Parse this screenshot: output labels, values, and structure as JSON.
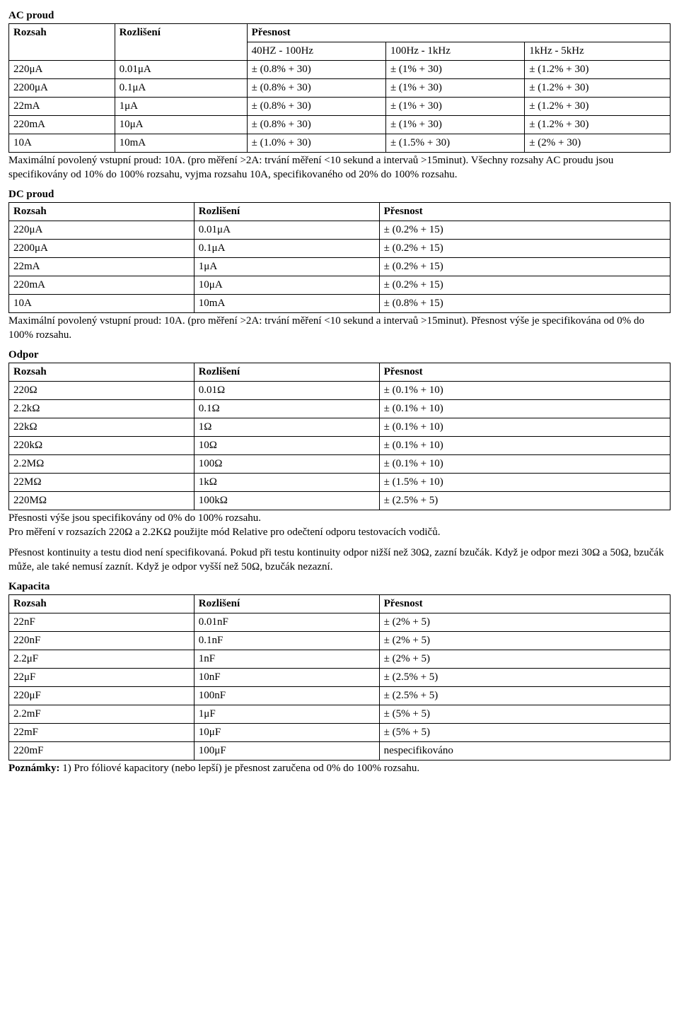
{
  "ac": {
    "title": "AC proud",
    "headers": {
      "range": "Rozsah",
      "resolution": "Rozlišení",
      "accuracy": "Přesnost",
      "b1": "40HZ - 100Hz",
      "b2": "100Hz - 1kHz",
      "b3": "1kHz - 5kHz"
    },
    "rows": [
      {
        "range": "220μA",
        "res": "0.01μA",
        "a1": "± (0.8% + 30)",
        "a2": "± (1% + 30)",
        "a3": "± (1.2% + 30)"
      },
      {
        "range": "2200μA",
        "res": "0.1μA",
        "a1": "± (0.8% + 30)",
        "a2": "± (1% + 30)",
        "a3": "± (1.2% + 30)"
      },
      {
        "range": "22mA",
        "res": "1μA",
        "a1": "± (0.8% + 30)",
        "a2": "± (1% + 30)",
        "a3": "± (1.2% + 30)"
      },
      {
        "range": "220mA",
        "res": "10μA",
        "a1": "± (0.8% + 30)",
        "a2": "± (1% + 30)",
        "a3": "± (1.2% + 30)"
      },
      {
        "range": "10A",
        "res": "10mA",
        "a1": "± (1.0% + 30)",
        "a2": "± (1.5% + 30)",
        "a3": "± (2% + 30)"
      }
    ],
    "note": "Maximální povolený vstupní proud: 10A. (pro měření >2A: trvání měření <10 sekund a intervaů >15minut). Všechny rozsahy AC proudu jsou specifikovány od 10% do 100% rozsahu, vyjma rozsahu 10A, specifikovaného od 20% do 100% rozsahu."
  },
  "dc": {
    "title": "DC proud",
    "headers": {
      "range": "Rozsah",
      "resolution": "Rozlišení",
      "accuracy": "Přesnost"
    },
    "rows": [
      {
        "range": "220μA",
        "res": "0.01μA",
        "acc": "± (0.2% + 15)"
      },
      {
        "range": "2200μA",
        "res": "0.1μA",
        "acc": "± (0.2% + 15)"
      },
      {
        "range": "22mA",
        "res": "1μA",
        "acc": "± (0.2% + 15)"
      },
      {
        "range": "220mA",
        "res": "10μA",
        "acc": "± (0.2% + 15)"
      },
      {
        "range": "10A",
        "res": "10mA",
        "acc": "± (0.8% + 15)"
      }
    ],
    "note": "Maximální povolený vstupní proud: 10A. (pro měření >2A: trvání měření <10 sekund a intervaů >15minut). Přesnost výše je specifikována od 0% do 100% rozsahu."
  },
  "res": {
    "title": "Odpor",
    "headers": {
      "range": "Rozsah",
      "resolution": "Rozlišení",
      "accuracy": "Přesnost"
    },
    "rows": [
      {
        "range": "220Ω",
        "res": "0.01Ω",
        "acc": "± (0.1% + 10)"
      },
      {
        "range": "2.2kΩ",
        "res": "0.1Ω",
        "acc": "± (0.1% + 10)"
      },
      {
        "range": "22kΩ",
        "res": "1Ω",
        "acc": "± (0.1% + 10)"
      },
      {
        "range": "220kΩ",
        "res": "10Ω",
        "acc": "± (0.1% + 10)"
      },
      {
        "range": "2.2MΩ",
        "res": "100Ω",
        "acc": "± (0.1% + 10)"
      },
      {
        "range": "22MΩ",
        "res": "1kΩ",
        "acc": "± (1.5% + 10)"
      },
      {
        "range": "220MΩ",
        "res": "100kΩ",
        "acc": "± (2.5% + 5)"
      }
    ],
    "note1": "Přesnosti výše jsou specifikovány od 0% do 100% rozsahu.\nPro měření v rozsazích 220Ω a 2.2KΩ použijte mód Relative pro odečtení odporu testovacích vodičů.",
    "note2": "Přesnost kontinuity a testu diod není specifikovaná. Pokud při testu kontinuity odpor nižší než 30Ω, zazní bzučák. Když je odpor mezi 30Ω a 50Ω, bzučák může, ale také nemusí zaznít. Když je odpor vyšší než 50Ω, bzučák nezazní."
  },
  "cap": {
    "title": "Kapacita",
    "headers": {
      "range": "Rozsah",
      "resolution": "Rozlišení",
      "accuracy": "Přesnost"
    },
    "rows": [
      {
        "range": "22nF",
        "res": "0.01nF",
        "acc": "± (2% + 5)"
      },
      {
        "range": "220nF",
        "res": "0.1nF",
        "acc": "± (2% + 5)"
      },
      {
        "range": "2.2μF",
        "res": "1nF",
        "acc": "± (2% + 5)"
      },
      {
        "range": "22μF",
        "res": "10nF",
        "acc": "± (2.5% + 5)"
      },
      {
        "range": "220μF",
        "res": "100nF",
        "acc": "± (2.5% + 5)"
      },
      {
        "range": "2.2mF",
        "res": "1μF",
        "acc": "± (5% + 5)"
      },
      {
        "range": "22mF",
        "res": "10μF",
        "acc": "± (5% + 5)"
      },
      {
        "range": "220mF",
        "res": "100μF",
        "acc": "nespecifikováno"
      }
    ],
    "note_prefix": "Poznámky:",
    "note": " 1) Pro fóliové kapacitory (nebo lepší) je přesnost zaručena od 0% do 100% rozsahu."
  }
}
